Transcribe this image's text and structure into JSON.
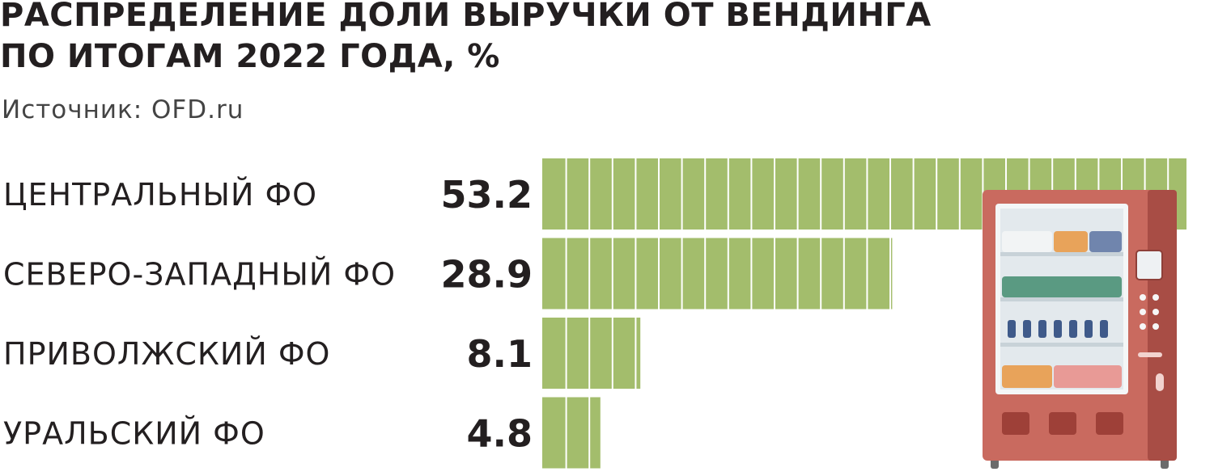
{
  "title_lines": [
    "РАСПРЕДЕЛЕНИЕ ДОЛИ ВЫРУЧКИ ОТ ВЕНДИНГА",
    "ПО ИТОГАМ 2022 ГОДА, %"
  ],
  "source": "Источник: OFD.ru",
  "illustration_icon": "vending-machine-icon",
  "colors": {
    "bar": "#a3bd6c",
    "bar_divider": "#ffffff",
    "machine_body": "#c96a5f",
    "machine_side": "#a84d45",
    "text": "#231f20"
  },
  "chart_data": {
    "type": "bar",
    "orientation": "horizontal",
    "title": "РАСПРЕДЕЛЕНИЕ ДОЛИ ВЫРУЧКИ ОТ ВЕНДИНГА ПО ИТОГАМ 2022 ГОДА, %",
    "categories": [
      "ЦЕНТРАЛЬНЫЙ ФО",
      "СЕВЕРО-ЗАПАДНЫЙ ФО",
      "ПРИВОЛЖСКИЙ ФО",
      "УРАЛЬСКИЙ ФО"
    ],
    "values": [
      53.2,
      28.9,
      8.1,
      4.8
    ],
    "value_labels": [
      "53.2",
      "28.9",
      "8.1",
      "4.8"
    ],
    "xlim": [
      0,
      53.2
    ],
    "grid": false,
    "legend": "none"
  }
}
